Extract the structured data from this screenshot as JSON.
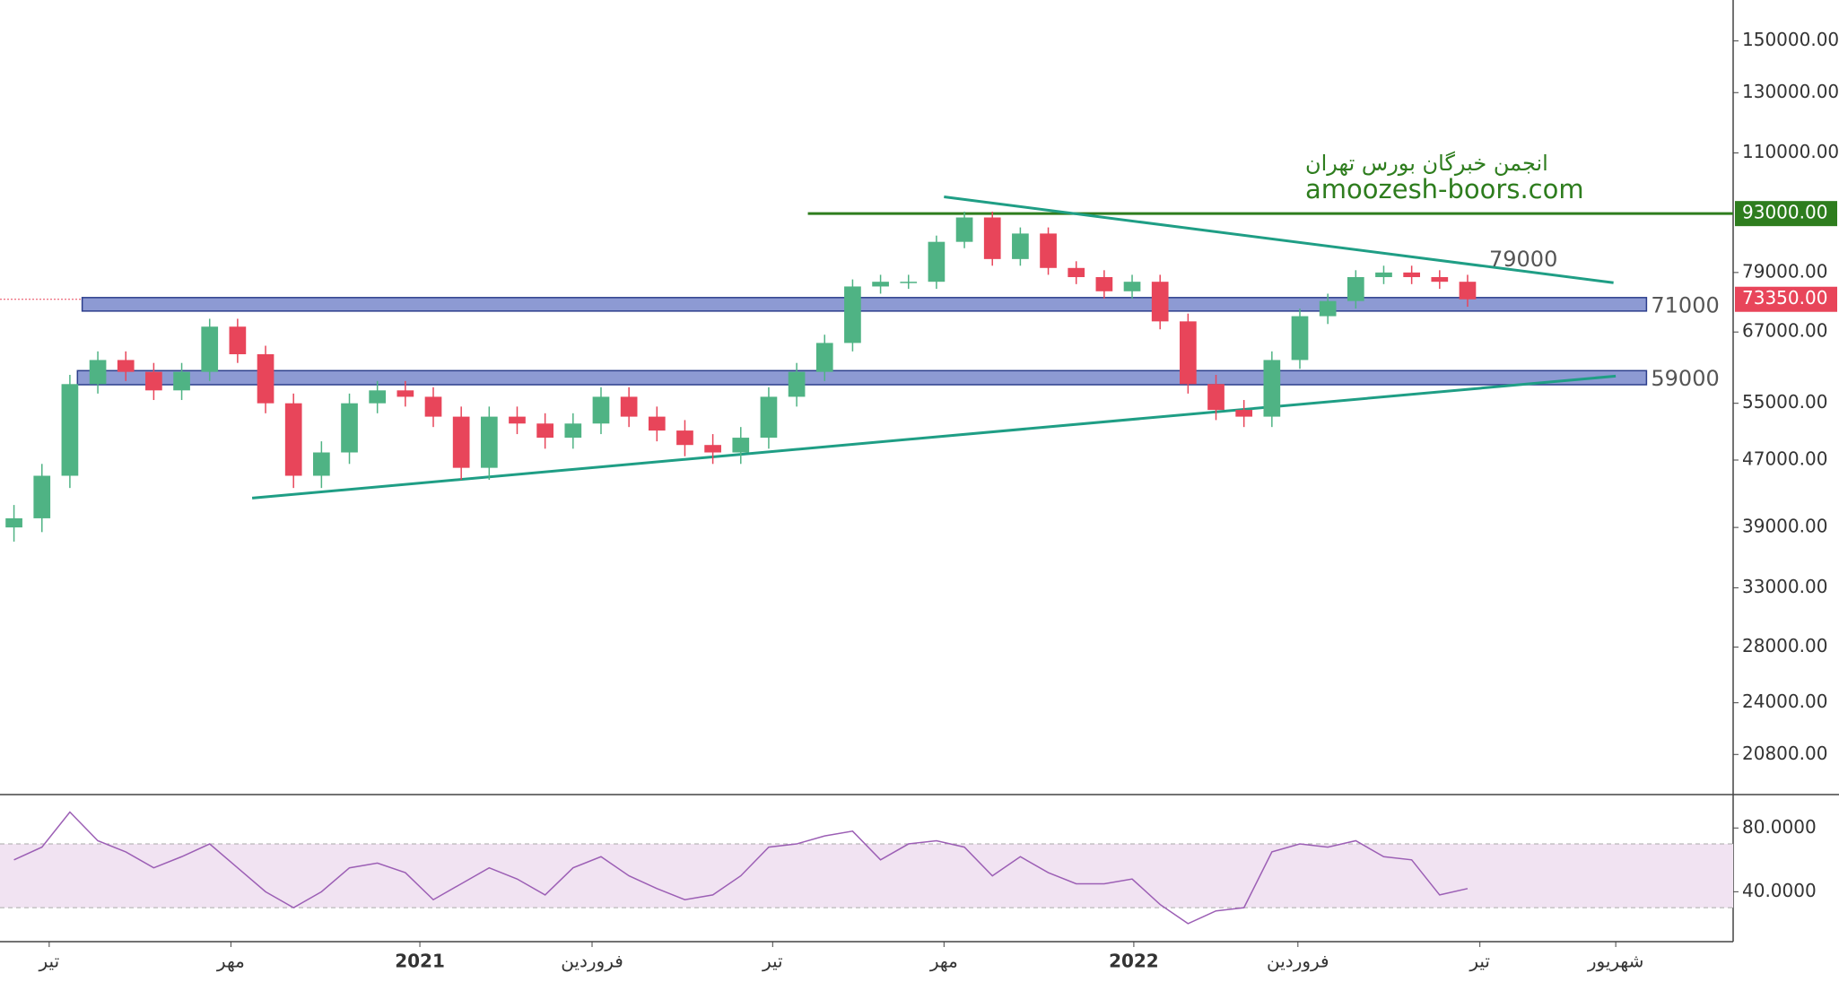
{
  "chart_data": {
    "type": "candlestick",
    "log_scale": true,
    "up_color": "#4fb384",
    "down_color": "#e8455a",
    "xlim": [
      0,
      62
    ],
    "xticks": [
      {
        "value": 1.76,
        "label": "تیر"
      },
      {
        "value": 8.26,
        "label": "مهر"
      },
      {
        "value": 15.02,
        "label": "2021"
      },
      {
        "value": 21.18,
        "label": "فروردین"
      },
      {
        "value": 27.64,
        "label": "تیر"
      },
      {
        "value": 33.77,
        "label": "مهر"
      },
      {
        "value": 40.56,
        "label": "2022"
      },
      {
        "value": 46.43,
        "label": "فروردین"
      },
      {
        "value": 52.94,
        "label": "تیر"
      },
      {
        "value": 57.8,
        "label": "شهریور"
      }
    ],
    "ylim": [
      18660,
      168000
    ],
    "yticks": [
      {
        "value": 150000,
        "label": "150000.00"
      },
      {
        "value": 130000,
        "label": "130000.00"
      },
      {
        "value": 110000,
        "label": "110000.00"
      },
      {
        "value": 79000,
        "label": "79000.00"
      },
      {
        "value": 67000,
        "label": "67000.00"
      },
      {
        "value": 55000,
        "label": "55000.00"
      },
      {
        "value": 47000,
        "label": "47000.00"
      },
      {
        "value": 39000,
        "label": "39000.00"
      },
      {
        "value": 33000,
        "label": "33000.00"
      },
      {
        "value": 28000,
        "label": "28000.00"
      },
      {
        "value": 24000,
        "label": "24000.00"
      },
      {
        "value": 20800,
        "label": "20800.00"
      }
    ],
    "candles": {
      "x": [
        0.5,
        1.5,
        2.5,
        3.5,
        4.5,
        5.5,
        6.5,
        7.5,
        8.5,
        9.5,
        10.5,
        11.5,
        12.5,
        13.5,
        14.5,
        15.5,
        16.5,
        17.5,
        18.5,
        19.5,
        20.5,
        21.5,
        22.5,
        23.5,
        24.5,
        25.5,
        26.5,
        27.5,
        28.5,
        29.5,
        30.5,
        31.5,
        32.5,
        33.5,
        34.5,
        35.5,
        36.5,
        37.5,
        38.5,
        39.5,
        40.5,
        41.5,
        42.5,
        43.5,
        44.5,
        45.5,
        46.5,
        47.5,
        48.5,
        49.5,
        50.5,
        51.5,
        52.5
      ],
      "open": [
        39000,
        40000,
        45000,
        58000,
        62000,
        60000,
        57000,
        60000,
        68000,
        63000,
        55000,
        45000,
        48000,
        55000,
        57000,
        56000,
        53000,
        46000,
        53000,
        52000,
        50000,
        52000,
        56000,
        53000,
        51000,
        49000,
        48000,
        50000,
        56000,
        60000,
        65000,
        76000,
        77000,
        77000,
        86000,
        92000,
        82000,
        88000,
        80000,
        78000,
        75000,
        77000,
        69000,
        58000,
        54000,
        53000,
        62000,
        70000,
        73000,
        78000,
        79000,
        78000,
        77000
      ],
      "high": [
        41500,
        46500,
        59500,
        63500,
        63500,
        61500,
        61500,
        69500,
        69500,
        64500,
        56500,
        49500,
        56500,
        58500,
        58500,
        57500,
        54500,
        54500,
        54500,
        53500,
        53500,
        57500,
        57500,
        54500,
        52500,
        50500,
        51500,
        57500,
        61500,
        66500,
        77500,
        78500,
        78500,
        87500,
        93500,
        93500,
        89500,
        89500,
        81500,
        79500,
        78500,
        78500,
        70500,
        59500,
        55500,
        63500,
        71500,
        74500,
        79500,
        80500,
        80500,
        79500,
        78500
      ],
      "low": [
        37500,
        38500,
        43500,
        56500,
        58500,
        55500,
        55500,
        58500,
        61500,
        53500,
        43500,
        43500,
        46500,
        53500,
        54500,
        51500,
        44500,
        44500,
        50500,
        48500,
        48500,
        50500,
        51500,
        49500,
        47500,
        46500,
        46500,
        48500,
        54500,
        58500,
        63500,
        74500,
        75500,
        75500,
        84500,
        80500,
        80500,
        78500,
        76500,
        73500,
        73500,
        67500,
        56500,
        52500,
        51500,
        51500,
        60500,
        68500,
        71500,
        76500,
        76500,
        75500,
        71850
      ],
      "close": [
        40000,
        45000,
        58000,
        62000,
        60000,
        57000,
        60000,
        68000,
        63000,
        55000,
        45000,
        48000,
        55000,
        57000,
        56000,
        53000,
        46000,
        53000,
        52000,
        50000,
        52000,
        56000,
        53000,
        51000,
        49000,
        48000,
        50000,
        56000,
        60000,
        65000,
        76000,
        77000,
        77000,
        86000,
        92000,
        82000,
        88000,
        80000,
        78000,
        75000,
        77000,
        69000,
        58000,
        54000,
        53000,
        62000,
        70000,
        73000,
        78000,
        79000,
        78000,
        77000,
        73350
      ]
    },
    "hline": {
      "value": 93000,
      "label": "93000.00",
      "color": "#2e7d1e",
      "x_start": 28.9
    },
    "last_price": {
      "value": 73350,
      "label": "73350.00",
      "color": "#e8455a"
    },
    "zones": [
      {
        "label": "71000",
        "ylim": [
          71000,
          73700
        ],
        "x_range": [
          2.94,
          58.9
        ],
        "color": "#5c6fc0"
      },
      {
        "label": "59000",
        "ylim": [
          57900,
          60200
        ],
        "x_range": [
          2.77,
          58.9
        ],
        "color": "#5c6fc0"
      }
    ],
    "trendlines": [
      {
        "x": [
          33.77,
          57.72
        ],
        "y": [
          97400,
          76800
        ],
        "color": "#1f9e85"
      },
      {
        "x": [
          9.02,
          57.8
        ],
        "y": [
          42300,
          59300
        ],
        "color": "#1f9e85"
      }
    ],
    "annotation": "79000",
    "watermark": [
      "انجمن خبرگان بورس تهران",
      "amoozesh-boors.com"
    ],
    "rsi": {
      "type": "line",
      "color": "#9c5fb5",
      "ylim": [
        8.7,
        100.4
      ],
      "band": [
        30,
        70
      ],
      "yticks": [
        {
          "value": 80,
          "label": "80.0000"
        },
        {
          "value": 40,
          "label": "40.0000"
        }
      ],
      "values": [
        60,
        68,
        90,
        72,
        65,
        55,
        62,
        70,
        55,
        40,
        30,
        40,
        55,
        58,
        52,
        35,
        45,
        55,
        48,
        38,
        55,
        62,
        50,
        42,
        35,
        38,
        50,
        68,
        70,
        75,
        78,
        60,
        70,
        72,
        68,
        50,
        62,
        52,
        45,
        45,
        48,
        32,
        20,
        28,
        30,
        65,
        70,
        68,
        72,
        62,
        60,
        38,
        42
      ]
    }
  }
}
